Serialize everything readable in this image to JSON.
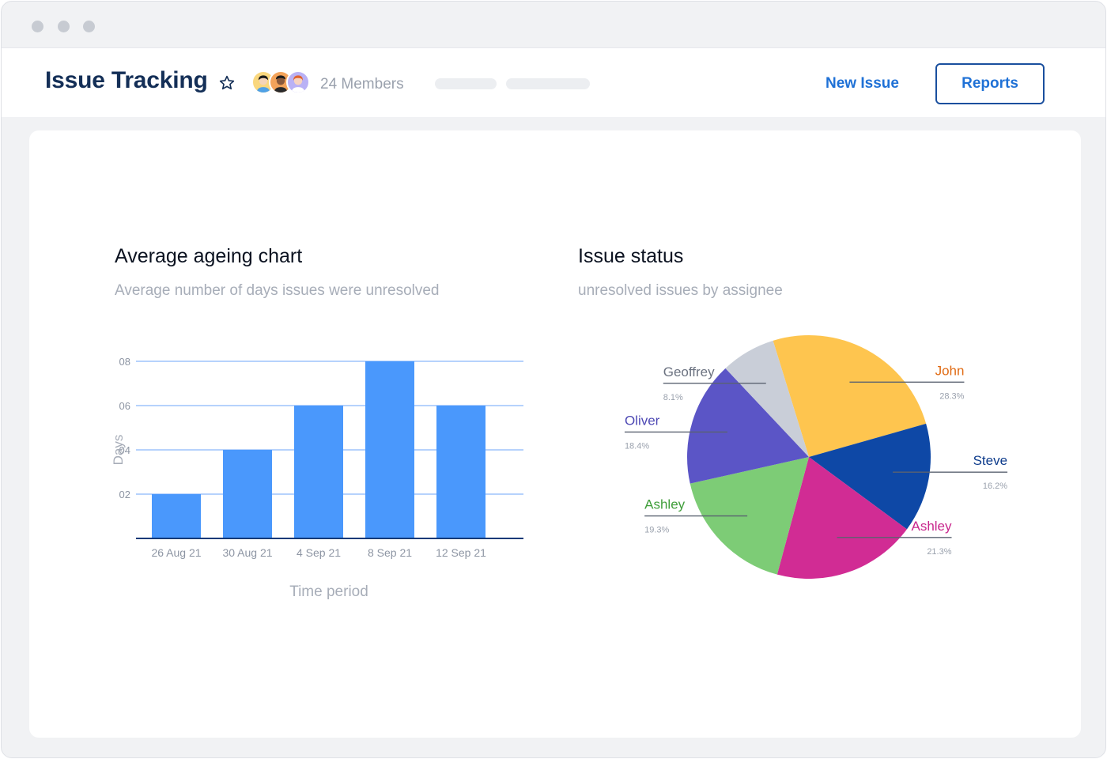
{
  "header": {
    "title": "Issue Tracking",
    "members": "24 Members",
    "new_issue_label": "New Issue",
    "reports_label": "Reports"
  },
  "icons": [
    "star-icon",
    "avatar"
  ],
  "colors": {
    "title": "#142f57",
    "accent": "#1f71d6",
    "bar": "#4a98fc"
  },
  "charts": {
    "bar": {
      "title": "Average ageing chart",
      "subtitle": "Average number of days issues were unresolved"
    },
    "pie": {
      "title": "Issue status",
      "subtitle": "unresolved issues by assignee"
    }
  },
  "chart_data": [
    {
      "type": "bar",
      "title": "Average ageing chart",
      "subtitle": "Average number of days issues were unresolved",
      "categories": [
        "26 Aug 21",
        "30 Aug 21",
        "4 Sep 21",
        "8 Sep 21",
        "12 Sep 21"
      ],
      "values": [
        2,
        4,
        6,
        8,
        6
      ],
      "yticks": [
        "02",
        "04",
        "06",
        "08"
      ],
      "ylabel": "Days",
      "xlabel": "Time period",
      "ylim": [
        0,
        8
      ],
      "grid": true,
      "color": "#4a98fc"
    },
    {
      "type": "pie",
      "title": "Issue status",
      "subtitle": "unresolved issues by assignee",
      "slices": [
        {
          "name": "John",
          "value": 28.3,
          "label": "28.3%",
          "color": "#fec54f",
          "label_color": "#e06a12"
        },
        {
          "name": "Steve",
          "value": 16.2,
          "label": "16.2%",
          "color": "#0e48a6",
          "label_color": "#0e3c8c"
        },
        {
          "name": "Ashley",
          "value": 21.3,
          "label": "21.3%",
          "color": "#d12c94",
          "label_color": "#c8268c"
        },
        {
          "name": "Ashley",
          "value": 19.3,
          "label": "19.3%",
          "color": "#7dcc76",
          "label_color": "#3f9e3a"
        },
        {
          "name": "Oliver",
          "value": 18.4,
          "label": "18.4%",
          "color": "#5b55c6",
          "label_color": "#4d48b4"
        },
        {
          "name": "Geoffrey",
          "value": 8.1,
          "label": "8.1%",
          "color": "#c9ced8",
          "label_color": "#6b7280"
        }
      ]
    }
  ]
}
